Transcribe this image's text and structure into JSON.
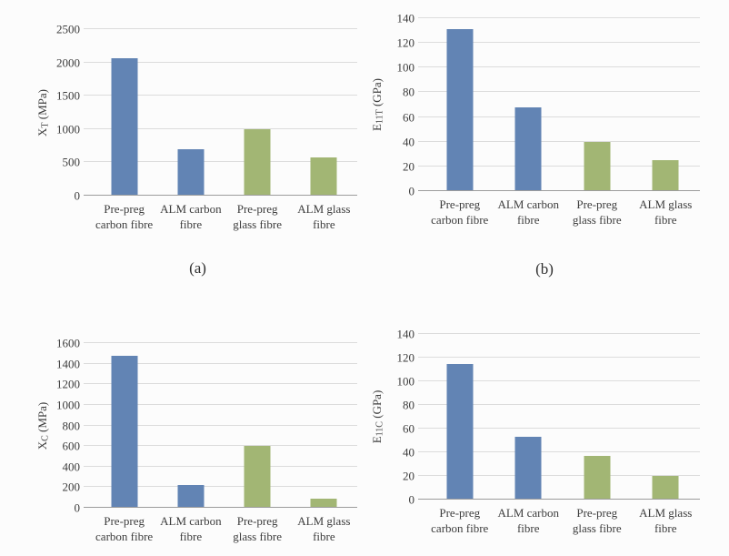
{
  "page": {
    "background": "#fcfcfc"
  },
  "colors": {
    "carbon_blue": "#6284b4",
    "glass_green": "#a2b674",
    "gridline": "#dcdcdc",
    "axis_line": "#9c9c9c",
    "text": "#3d3d3d"
  },
  "chart_data": [
    {
      "id": "a",
      "type": "bar",
      "caption": "(a)",
      "ylabel_base": "X",
      "ylabel_sub": "T",
      "ylabel_unit": " (MPa)",
      "categories": [
        [
          "Pre-preg",
          "carbon fibre"
        ],
        [
          "ALM carbon",
          "fibre"
        ],
        [
          "Pre-preg",
          "glass fibre"
        ],
        [
          "ALM glass",
          "fibre"
        ]
      ],
      "values": [
        2060,
        700,
        1000,
        570
      ],
      "yticks": [
        0,
        500,
        1000,
        1500,
        2000,
        2500
      ],
      "ylim": [
        0,
        2500
      ],
      "bar_colors": [
        "#6284b4",
        "#6284b4",
        "#a2b674",
        "#a2b674"
      ],
      "grid": true,
      "legend": "none"
    },
    {
      "id": "b",
      "type": "bar",
      "caption": "(b)",
      "ylabel_base": "E",
      "ylabel_sub": "11T",
      "ylabel_unit": " (GPa)",
      "categories": [
        [
          "Pre-preg",
          "carbon fibre"
        ],
        [
          "ALM carbon",
          "fibre"
        ],
        [
          "Pre-preg",
          "glass fibre"
        ],
        [
          "ALM glass",
          "fibre"
        ]
      ],
      "values": [
        131,
        68,
        40,
        25
      ],
      "yticks": [
        0,
        20,
        40,
        60,
        80,
        100,
        120,
        140
      ],
      "ylim": [
        0,
        140
      ],
      "bar_colors": [
        "#6284b4",
        "#6284b4",
        "#a2b674",
        "#a2b674"
      ],
      "grid": true,
      "legend": "none"
    },
    {
      "id": "c",
      "type": "bar",
      "caption": "",
      "ylabel_base": "X",
      "ylabel_sub": "C",
      "ylabel_unit": " (MPa)",
      "categories": [
        [
          "Pre-preg",
          "carbon fibre"
        ],
        [
          "ALM carbon",
          "fibre"
        ],
        [
          "Pre-preg",
          "glass fibre"
        ],
        [
          "ALM glass",
          "fibre"
        ]
      ],
      "values": [
        1480,
        220,
        600,
        85
      ],
      "yticks": [
        0,
        200,
        400,
        600,
        800,
        1000,
        1200,
        1400,
        1600
      ],
      "ylim": [
        0,
        1600
      ],
      "bar_colors": [
        "#6284b4",
        "#6284b4",
        "#a2b674",
        "#a2b674"
      ],
      "grid": true,
      "legend": "none"
    },
    {
      "id": "d",
      "type": "bar",
      "caption": "",
      "ylabel_base": "E",
      "ylabel_sub": "11C",
      "ylabel_unit": " (GPa)",
      "categories": [
        [
          "Pre-preg",
          "carbon fibre"
        ],
        [
          "ALM carbon",
          "fibre"
        ],
        [
          "Pre-preg",
          "glass fibre"
        ],
        [
          "ALM glass",
          "fibre"
        ]
      ],
      "values": [
        115,
        53,
        37,
        20
      ],
      "yticks": [
        0,
        20,
        40,
        60,
        80,
        100,
        120,
        140
      ],
      "ylim": [
        0,
        140
      ],
      "bar_colors": [
        "#6284b4",
        "#6284b4",
        "#a2b674",
        "#a2b674"
      ],
      "grid": true,
      "legend": "none"
    }
  ]
}
